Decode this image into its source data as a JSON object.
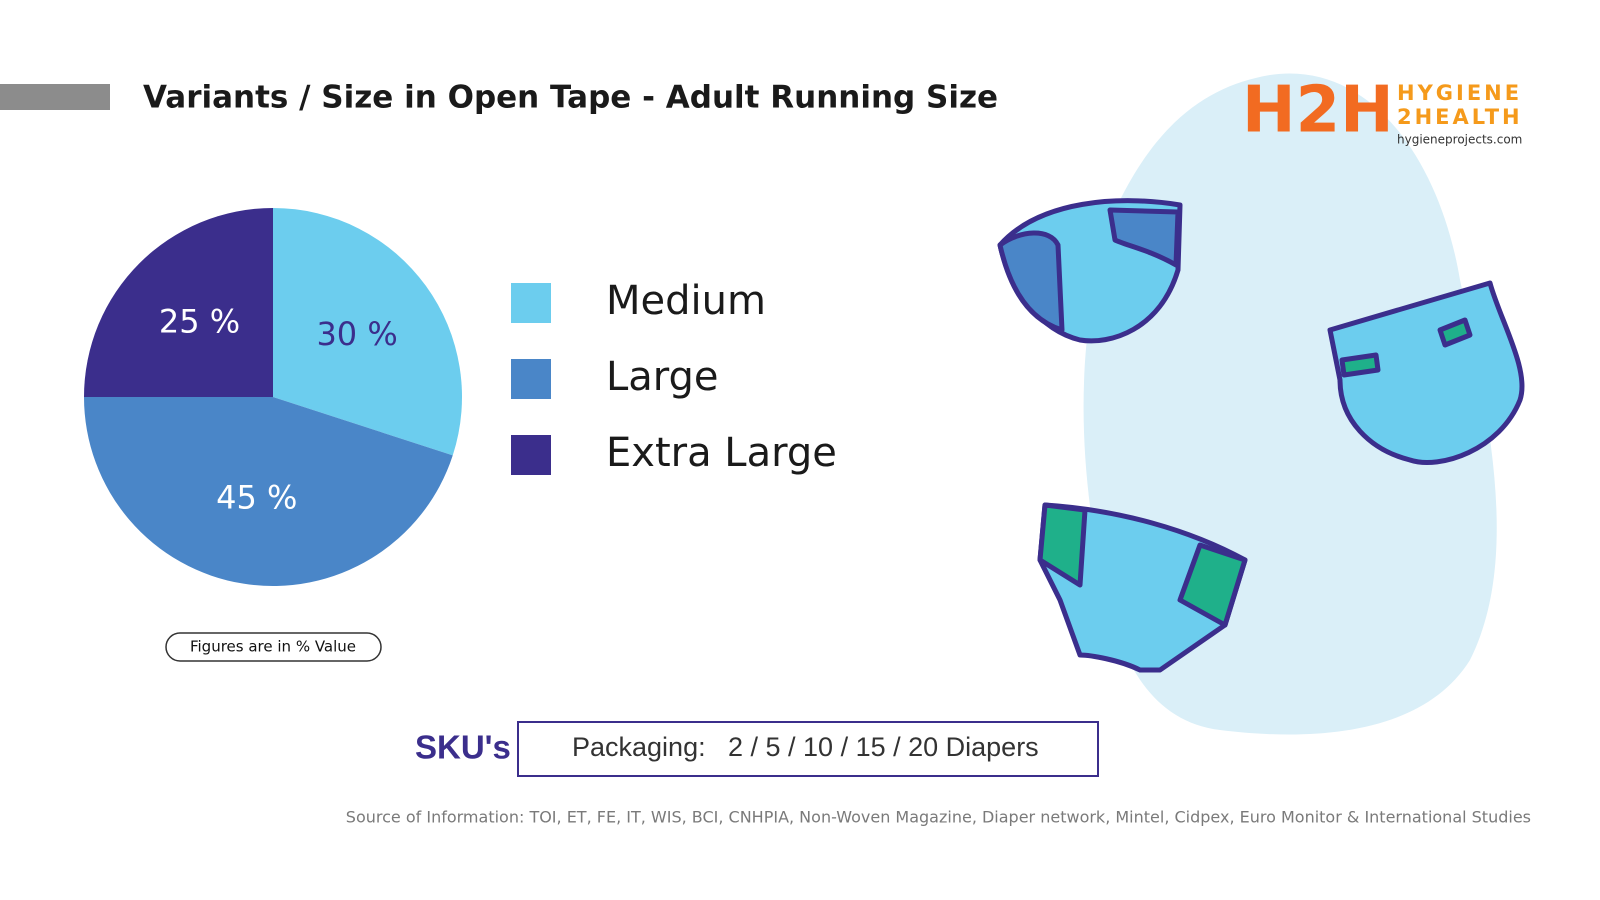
{
  "chart_data": {
    "type": "pie",
    "title": "Variants / Size in Open Tape - Adult Running Size",
    "categories": [
      "Medium",
      "Large",
      "Extra Large"
    ],
    "values": [
      30,
      45,
      25
    ],
    "value_labels": [
      "30 %",
      "45 %",
      "25 %"
    ],
    "colors": [
      "#6ccdee",
      "#4a86c8",
      "#3b2e8c"
    ],
    "note": "Figures are in % Value"
  },
  "logo": {
    "mark": "H2H",
    "line1": "HYGIENE",
    "line2": "2HEALTH",
    "url": "hygieneprojects.com"
  },
  "sku": {
    "label": "SKU's",
    "packaging_label": "Packaging:",
    "packaging_value": "2 / 5 / 10 / 15 / 20 Diapers"
  },
  "source": "Source of Information: TOI, ET, FE, IT, WIS, BCI, CNHPIA, Non-Woven Magazine, Diaper network, Mintel, Cidpex, Euro Monitor & International Studies"
}
